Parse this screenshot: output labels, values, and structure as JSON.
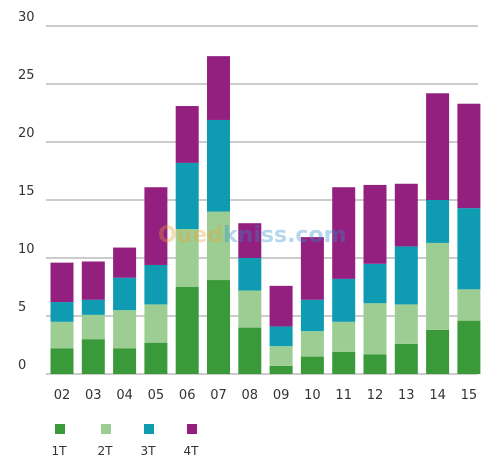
{
  "chart_data": {
    "type": "bar",
    "stacked": true,
    "categories": [
      "02",
      "03",
      "04",
      "05",
      "06",
      "07",
      "08",
      "09",
      "10",
      "11",
      "12",
      "13",
      "14",
      "15"
    ],
    "series": [
      {
        "name": "1T",
        "color": "#3a9a3a",
        "values": [
          2.2,
          3.0,
          2.2,
          2.7,
          7.5,
          8.1,
          4.0,
          0.7,
          1.5,
          1.9,
          1.7,
          2.6,
          3.8,
          4.6
        ]
      },
      {
        "name": "2T",
        "color": "#9cce94",
        "values": [
          2.3,
          2.1,
          3.3,
          3.3,
          5.0,
          5.9,
          3.2,
          1.7,
          2.2,
          2.6,
          4.4,
          3.4,
          7.5,
          2.7
        ]
      },
      {
        "name": "3T",
        "color": "#0f9bb2",
        "values": [
          1.7,
          1.3,
          2.8,
          3.4,
          5.7,
          7.9,
          2.8,
          1.7,
          2.7,
          3.7,
          3.4,
          5.0,
          3.7,
          7.0
        ]
      },
      {
        "name": "4T",
        "color": "#93207f",
        "values": [
          3.4,
          3.3,
          2.6,
          6.7,
          4.9,
          5.5,
          3.0,
          3.5,
          5.4,
          7.9,
          6.8,
          5.4,
          9.2,
          9.0
        ]
      }
    ],
    "yticks": [
      0,
      5,
      10,
      15,
      20,
      25,
      30
    ],
    "ylim": [
      0,
      30
    ],
    "grid": true,
    "legend": "bottom-left",
    "title": "",
    "xlabel": "",
    "ylabel": ""
  },
  "watermark": {
    "part1": "Oued",
    "part2": "kniss",
    "part3": ".com",
    "color1": "#f0a030",
    "color2": "#2a8fd0"
  }
}
